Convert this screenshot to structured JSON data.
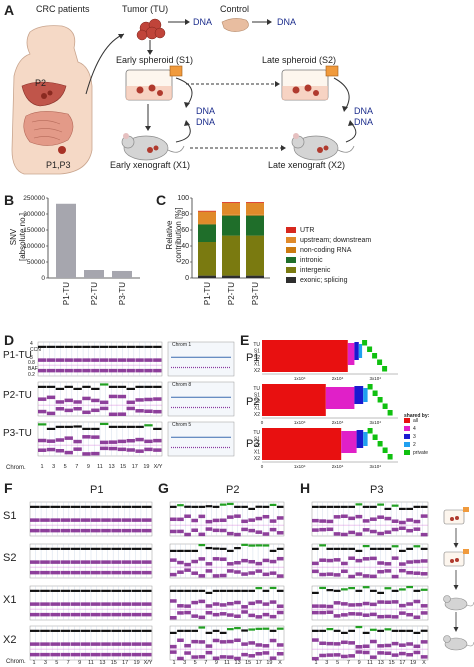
{
  "panel_letters": {
    "a": "A",
    "b": "B",
    "c": "C",
    "d": "D",
    "e": "E",
    "f": "F",
    "g": "G",
    "h": "H"
  },
  "panelA": {
    "patients": "CRC patients",
    "tumor": "Tumor (TU)",
    "control": "Control",
    "dna": "DNA",
    "p2": "P2",
    "p13": "P1,P3",
    "early_spheroid": "Early spheroid (S1)",
    "late_spheroid": "Late spheroid (S2)",
    "early_xeno": "Early xenograft (X1)",
    "late_xeno": "Late xenograft (X2)"
  },
  "panelB": {
    "ylabel_line1": "SNV",
    "ylabel_line2": "[absolute no.]",
    "chart_data": {
      "type": "bar",
      "categories": [
        "P1-TU",
        "P2-TU",
        "P3-TU"
      ],
      "values": [
        232000,
        25000,
        22000
      ],
      "ylim": [
        0,
        250000
      ],
      "yticks": [
        "0",
        "50000",
        "100000",
        "150000",
        "200000",
        "250000"
      ],
      "color": "#a6a6ae"
    }
  },
  "panelC": {
    "ylabel_line1": "Relative",
    "ylabel_line2": "contribution [%]",
    "chart_data": {
      "type": "bar",
      "stacked": true,
      "categories": [
        "P1-TU",
        "P2-TU",
        "P3-TU"
      ],
      "ylim": [
        0,
        100
      ],
      "yticks": [
        "0",
        "20",
        "40",
        "60",
        "80",
        "100"
      ],
      "legend": [
        "UTR",
        "upstream; downstream",
        "non-coding RNA",
        "intronic",
        "intergenic",
        "exonic; splicing"
      ],
      "series": [
        {
          "name": "exonic; splicing",
          "color": "#2e2e2e",
          "values": [
            3,
            3,
            3
          ]
        },
        {
          "name": "intergenic",
          "color": "#7a7a10",
          "values": [
            42,
            50,
            50
          ]
        },
        {
          "name": "intronic",
          "color": "#1f6e2a",
          "values": [
            22,
            25,
            25
          ]
        },
        {
          "name": "non-coding RNA",
          "color": "#cc7a10",
          "values": [
            1,
            1,
            1
          ]
        },
        {
          "name": "upstream; downstream",
          "color": "#e08a2a",
          "values": [
            15,
            15,
            15
          ]
        },
        {
          "name": "UTR",
          "color": "#d7281e",
          "values": [
            1,
            1,
            1
          ]
        }
      ]
    }
  },
  "panelD": {
    "rows": [
      "P1-TU",
      "P2-TU",
      "P3-TU"
    ],
    "chrom_label": "Chrom.",
    "chroms": [
      "1",
      "3",
      "5",
      "7",
      "9",
      "11",
      "13",
      "15",
      "17",
      "19",
      "X/Y"
    ],
    "yaxis": {
      "top": "4",
      "top2": "3",
      "ccn": "CCN",
      "mid": "0.8",
      "baf": "BAF",
      "bot": "0.2"
    },
    "insets": [
      "Chrom 1",
      "Chrom 8",
      "Chrom 5"
    ]
  },
  "panelE": {
    "patients": [
      "P1",
      "P2",
      "P3"
    ],
    "samples": [
      "TU",
      "S1",
      "S2",
      "X1",
      "X2"
    ],
    "xticks": [
      "1x10⁴",
      "2x10⁴",
      "3x10⁴"
    ],
    "legend_title": "shared by:",
    "legend": [
      {
        "label": "all",
        "color": "#e81010"
      },
      {
        "label": "4",
        "color": "#e020c8"
      },
      {
        "label": "3",
        "color": "#1a1ad0"
      },
      {
        "label": "2",
        "color": "#20a0f0"
      },
      {
        "label": "private",
        "color": "#10c010"
      }
    ]
  },
  "panelF": {
    "title": "P1",
    "rows": [
      "S1",
      "S2",
      "X1",
      "X2"
    ],
    "chroms": [
      "1",
      "3",
      "5",
      "7",
      "9",
      "11",
      "13",
      "15",
      "17",
      "19",
      "X/Y"
    ],
    "chrom_label": "Chrom."
  },
  "panelG": {
    "title": "P2",
    "chroms": [
      "1",
      "3",
      "5",
      "7",
      "9",
      "11",
      "13",
      "15",
      "17",
      "19",
      "X"
    ]
  },
  "panelH": {
    "title": "P3",
    "chroms": [
      "1",
      "3",
      "5",
      "7",
      "9",
      "11",
      "13",
      "15",
      "17",
      "19",
      "X"
    ]
  }
}
